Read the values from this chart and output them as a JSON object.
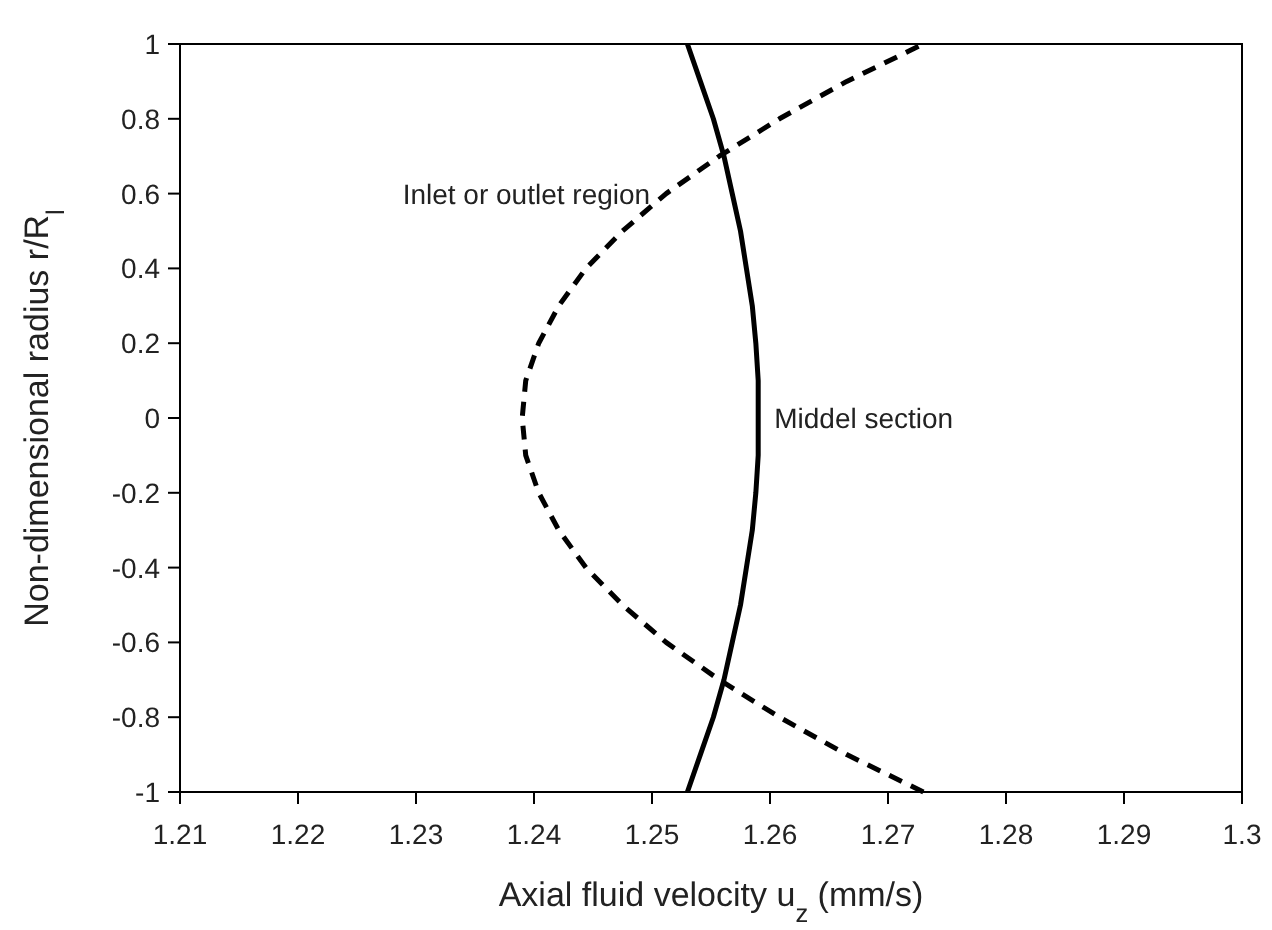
{
  "chart_data": {
    "type": "line",
    "xlabel": "Axial fluid velocity u$_{z}$ (mm/s)",
    "ylabel": "Non-dimensional radius r/R$_{l}$",
    "xlim": [
      1.21,
      1.3
    ],
    "xticks": [
      1.21,
      1.22,
      1.23,
      1.24,
      1.25,
      1.26,
      1.27,
      1.28,
      1.29,
      {
        "value": 1.3,
        "label": "1.3"
      }
    ],
    "ylim": [
      -1,
      1
    ],
    "yticks": [
      -1,
      {
        "value": -0.8,
        "label": "-0.8"
      },
      {
        "value": -0.6,
        "label": "-0.6"
      },
      {
        "value": -0.4,
        "label": "-0.4"
      },
      {
        "value": -0.2,
        "label": "-0.2"
      },
      0,
      0.2,
      0.4,
      0.6,
      0.8,
      1
    ],
    "grid": false,
    "legend": false,
    "marker": "none",
    "series": [
      {
        "name": "Inlet or outlet region",
        "color": "#000000",
        "line_style": "dashed",
        "x": [
          1.273,
          1.2665,
          1.2608,
          1.2557,
          1.2512,
          1.2475,
          1.2444,
          1.2421,
          1.2404,
          1.2393,
          1.239,
          1.2393,
          1.2404,
          1.2421,
          1.2444,
          1.2475,
          1.2512,
          1.2557,
          1.2608,
          1.2665,
          1.273
        ],
        "values": [
          -1,
          -0.9,
          -0.8,
          -0.7,
          -0.6,
          -0.5,
          -0.4,
          -0.3,
          -0.2,
          -0.1,
          0,
          0.1,
          0.2,
          0.3,
          0.4,
          0.5,
          0.6,
          0.7,
          0.8,
          0.9,
          1
        ]
      },
      {
        "name": "Middel section",
        "color": "#000000",
        "line_style": "solid",
        "x": [
          1.253,
          1.2541,
          1.2552,
          1.2561,
          1.2568,
          1.2575,
          1.258,
          1.2585,
          1.2588,
          1.259,
          1.259,
          1.259,
          1.2588,
          1.2585,
          1.258,
          1.2575,
          1.2568,
          1.2561,
          1.2552,
          1.2541,
          1.253
        ],
        "values": [
          -1,
          -0.9,
          -0.8,
          -0.7,
          -0.6,
          -0.5,
          -0.4,
          -0.3,
          -0.2,
          -0.1,
          0,
          0.1,
          0.2,
          0.3,
          0.4,
          0.5,
          0.6,
          0.7,
          0.8,
          0.9,
          1
        ]
      }
    ]
  }
}
